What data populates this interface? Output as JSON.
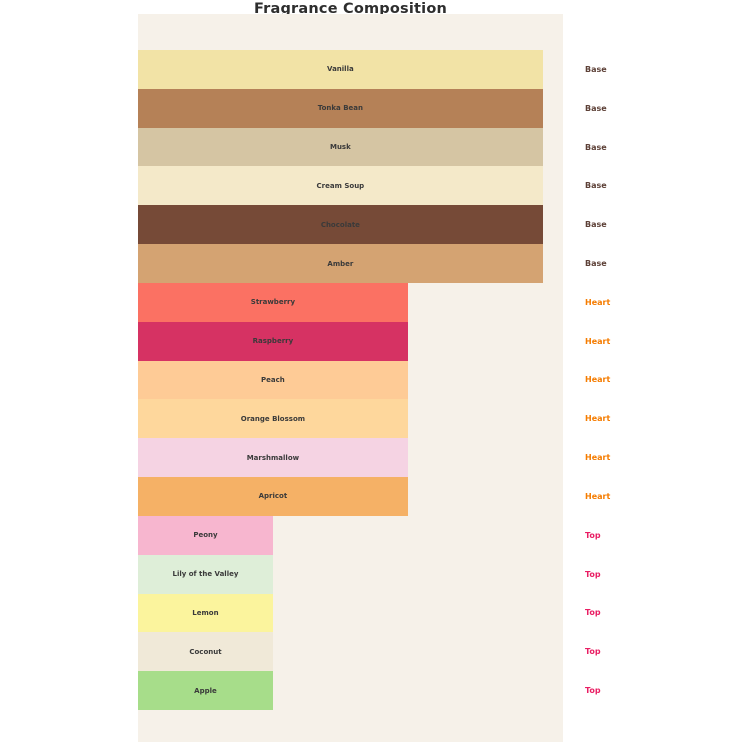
{
  "chart_data": {
    "type": "bar",
    "orientation": "horizontal",
    "title": "Fragrance Composition",
    "xlabel": "",
    "ylabel": "",
    "xlim": [
      0,
      3.15
    ],
    "grid": false,
    "legend": false,
    "plot_background": "#f6f1e9",
    "title_color": "#2e2e2e",
    "bar_label_color": "#3a3a3a",
    "category_colors": {
      "Base": "#5d4037",
      "Heart": "#f57c00",
      "Top": "#e91e63"
    },
    "items": [
      {
        "label": "Vanilla",
        "category": "Base",
        "value": 3,
        "color": "#f2e3a6"
      },
      {
        "label": "Tonka Bean",
        "category": "Base",
        "value": 3,
        "color": "#b58157"
      },
      {
        "label": "Musk",
        "category": "Base",
        "value": 3,
        "color": "#d5c5a3"
      },
      {
        "label": "Cream Soup",
        "category": "Base",
        "value": 3,
        "color": "#f4e9c9"
      },
      {
        "label": "Chocolate",
        "category": "Base",
        "value": 3,
        "color": "#764a37"
      },
      {
        "label": "Amber",
        "category": "Base",
        "value": 3,
        "color": "#d4a372"
      },
      {
        "label": "Strawberry",
        "category": "Heart",
        "value": 2,
        "color": "#fb7163"
      },
      {
        "label": "Raspberry",
        "category": "Heart",
        "value": 2,
        "color": "#d63263"
      },
      {
        "label": "Peach",
        "category": "Heart",
        "value": 2,
        "color": "#fecb96"
      },
      {
        "label": "Orange Blossom",
        "category": "Heart",
        "value": 2,
        "color": "#fed79c"
      },
      {
        "label": "Marshmallow",
        "category": "Heart",
        "value": 2,
        "color": "#f5d3e3"
      },
      {
        "label": "Apricot",
        "category": "Heart",
        "value": 2,
        "color": "#f5b166"
      },
      {
        "label": "Peony",
        "category": "Top",
        "value": 1,
        "color": "#f7b6cf"
      },
      {
        "label": "Lily of the Valley",
        "category": "Top",
        "value": 1,
        "color": "#deeed8"
      },
      {
        "label": "Lemon",
        "category": "Top",
        "value": 1,
        "color": "#fbf49d"
      },
      {
        "label": "Coconut",
        "category": "Top",
        "value": 1,
        "color": "#f0e9d8"
      },
      {
        "label": "Apple",
        "category": "Top",
        "value": 1,
        "color": "#a7dd8a"
      }
    ]
  }
}
